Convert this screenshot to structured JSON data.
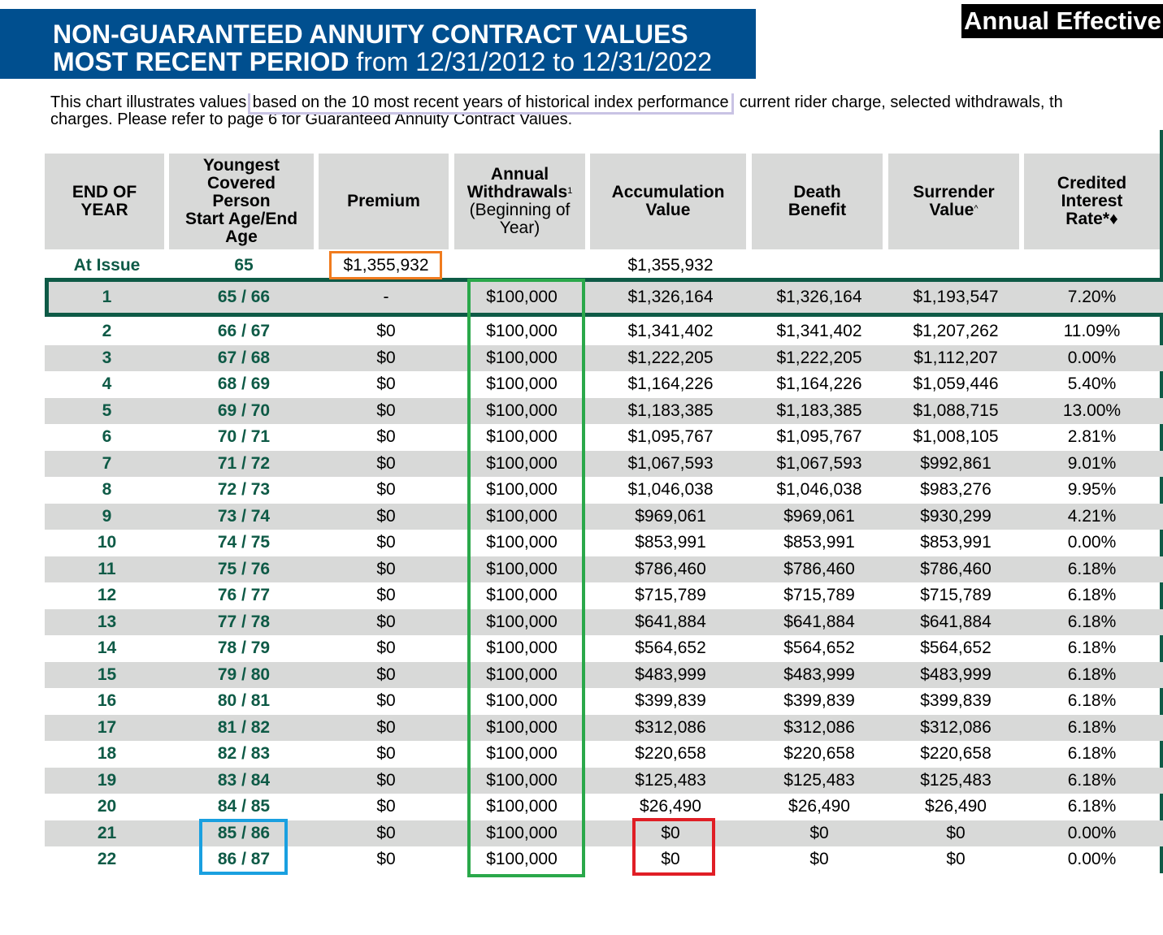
{
  "title": {
    "line1": "NON-GUARANTEED ANNUITY CONTRACT VALUES",
    "line2_bold": "MOST RECENT PERIOD",
    "line2_rest": " from 12/31/2012 to 12/31/2022"
  },
  "corner_label": "Annual Effective",
  "intro": {
    "before": "This chart illustrates values ",
    "highlight": "based on the 10 most recent years of historical index performance",
    "after": ", current rider charge, selected withdrawals, th",
    "line2": "charges. Please refer to page 6 for Guaranteed Annuity Contract Values."
  },
  "headers": {
    "end_of_year": [
      "END OF",
      "YEAR"
    ],
    "age": [
      "Youngest",
      "Covered",
      "Person",
      "Start Age/End",
      "Age"
    ],
    "premium": "Premium",
    "withdrawals_bold": [
      "Annual",
      "Withdrawals"
    ],
    "withdrawals_sup": "1",
    "withdrawals_norm": [
      "(Beginning of",
      "Year)"
    ],
    "accumulation": [
      "Accumulation",
      "Value"
    ],
    "death": [
      "Death",
      "Benefit"
    ],
    "surrender": [
      "Surrender",
      "Value"
    ],
    "surrender_sup": "^",
    "credited": [
      "Credited",
      "Interest",
      "Rate*♦"
    ]
  },
  "issue_row": {
    "label": "At Issue",
    "age": "65",
    "premium": "$1,355,932",
    "accumulation": "$1,355,932"
  },
  "rows": [
    {
      "year": "1",
      "age": "65 / 66",
      "premium": "-",
      "withdrawal": "$100,000",
      "accumulation": "$1,326,164",
      "death": "$1,326,164",
      "surrender": "$1,193,547",
      "rate": "7.20%"
    },
    {
      "year": "2",
      "age": "66 / 67",
      "premium": "$0",
      "withdrawal": "$100,000",
      "accumulation": "$1,341,402",
      "death": "$1,341,402",
      "surrender": "$1,207,262",
      "rate": "11.09%"
    },
    {
      "year": "3",
      "age": "67 / 68",
      "premium": "$0",
      "withdrawal": "$100,000",
      "accumulation": "$1,222,205",
      "death": "$1,222,205",
      "surrender": "$1,112,207",
      "rate": "0.00%"
    },
    {
      "year": "4",
      "age": "68 / 69",
      "premium": "$0",
      "withdrawal": "$100,000",
      "accumulation": "$1,164,226",
      "death": "$1,164,226",
      "surrender": "$1,059,446",
      "rate": "5.40%"
    },
    {
      "year": "5",
      "age": "69 / 70",
      "premium": "$0",
      "withdrawal": "$100,000",
      "accumulation": "$1,183,385",
      "death": "$1,183,385",
      "surrender": "$1,088,715",
      "rate": "13.00%"
    },
    {
      "year": "6",
      "age": "70 / 71",
      "premium": "$0",
      "withdrawal": "$100,000",
      "accumulation": "$1,095,767",
      "death": "$1,095,767",
      "surrender": "$1,008,105",
      "rate": "2.81%"
    },
    {
      "year": "7",
      "age": "71 / 72",
      "premium": "$0",
      "withdrawal": "$100,000",
      "accumulation": "$1,067,593",
      "death": "$1,067,593",
      "surrender": "$992,861",
      "rate": "9.01%"
    },
    {
      "year": "8",
      "age": "72 / 73",
      "premium": "$0",
      "withdrawal": "$100,000",
      "accumulation": "$1,046,038",
      "death": "$1,046,038",
      "surrender": "$983,276",
      "rate": "9.95%"
    },
    {
      "year": "9",
      "age": "73 / 74",
      "premium": "$0",
      "withdrawal": "$100,000",
      "accumulation": "$969,061",
      "death": "$969,061",
      "surrender": "$930,299",
      "rate": "4.21%"
    },
    {
      "year": "10",
      "age": "74 / 75",
      "premium": "$0",
      "withdrawal": "$100,000",
      "accumulation": "$853,991",
      "death": "$853,991",
      "surrender": "$853,991",
      "rate": "0.00%"
    },
    {
      "year": "11",
      "age": "75 / 76",
      "premium": "$0",
      "withdrawal": "$100,000",
      "accumulation": "$786,460",
      "death": "$786,460",
      "surrender": "$786,460",
      "rate": "6.18%"
    },
    {
      "year": "12",
      "age": "76 / 77",
      "premium": "$0",
      "withdrawal": "$100,000",
      "accumulation": "$715,789",
      "death": "$715,789",
      "surrender": "$715,789",
      "rate": "6.18%"
    },
    {
      "year": "13",
      "age": "77 / 78",
      "premium": "$0",
      "withdrawal": "$100,000",
      "accumulation": "$641,884",
      "death": "$641,884",
      "surrender": "$641,884",
      "rate": "6.18%"
    },
    {
      "year": "14",
      "age": "78 / 79",
      "premium": "$0",
      "withdrawal": "$100,000",
      "accumulation": "$564,652",
      "death": "$564,652",
      "surrender": "$564,652",
      "rate": "6.18%"
    },
    {
      "year": "15",
      "age": "79 / 80",
      "premium": "$0",
      "withdrawal": "$100,000",
      "accumulation": "$483,999",
      "death": "$483,999",
      "surrender": "$483,999",
      "rate": "6.18%"
    },
    {
      "year": "16",
      "age": "80 / 81",
      "premium": "$0",
      "withdrawal": "$100,000",
      "accumulation": "$399,839",
      "death": "$399,839",
      "surrender": "$399,839",
      "rate": "6.18%"
    },
    {
      "year": "17",
      "age": "81 / 82",
      "premium": "$0",
      "withdrawal": "$100,000",
      "accumulation": "$312,086",
      "death": "$312,086",
      "surrender": "$312,086",
      "rate": "6.18%"
    },
    {
      "year": "18",
      "age": "82 / 83",
      "premium": "$0",
      "withdrawal": "$100,000",
      "accumulation": "$220,658",
      "death": "$220,658",
      "surrender": "$220,658",
      "rate": "6.18%"
    },
    {
      "year": "19",
      "age": "83 / 84",
      "premium": "$0",
      "withdrawal": "$100,000",
      "accumulation": "$125,483",
      "death": "$125,483",
      "surrender": "$125,483",
      "rate": "6.18%"
    },
    {
      "year": "20",
      "age": "84 / 85",
      "premium": "$0",
      "withdrawal": "$100,000",
      "accumulation": "$26,490",
      "death": "$26,490",
      "surrender": "$26,490",
      "rate": "6.18%"
    },
    {
      "year": "21",
      "age": "85 / 86",
      "premium": "$0",
      "withdrawal": "$100,000",
      "accumulation": "$0",
      "death": "$0",
      "surrender": "$0",
      "rate": "0.00%"
    },
    {
      "year": "22",
      "age": "86 / 87",
      "premium": "$0",
      "withdrawal": "$100,000",
      "accumulation": "$0",
      "death": "$0",
      "surrender": "$0",
      "rate": "0.00%"
    }
  ],
  "colors": {
    "title_bg": "#004f8f",
    "green_text": "#0e5a46",
    "row_shade": "#d8d9d8",
    "highlight_orange": "#f07b1e",
    "highlight_green": "#2aa84a",
    "highlight_blue": "#1aa0e0",
    "highlight_red": "#e01e25",
    "highlight_lavender": "#c9c3e4"
  }
}
